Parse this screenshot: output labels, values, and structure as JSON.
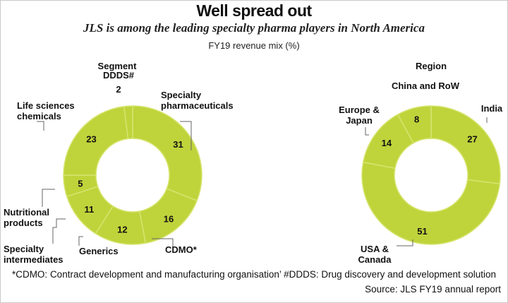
{
  "header": {
    "title": "Well spread out",
    "subtitle": "JLS is among the leading specialty pharma players in North America",
    "caption": "FY19 revenue mix (%)"
  },
  "colors": {
    "ring": "#bfd43b",
    "divider": "#d7e46f",
    "leader": "#666666"
  },
  "footer": {
    "footnote": "*CDMO: Contract development and manufacturing organisation’ #DDDS: Drug discovery and development solution",
    "source": "Source: JLS FY19 annual report"
  },
  "chart_data": [
    {
      "type": "pie",
      "title": "Segment",
      "categories": [
        "Specialty pharmaceuticals",
        "CDMO*",
        "Generics",
        "Specialty intermediates",
        "Nutritional products",
        "Life sciences chemicals",
        "DDDS#"
      ],
      "values": [
        31,
        16,
        12,
        11,
        5,
        23,
        2
      ],
      "donut": true
    },
    {
      "type": "pie",
      "title": "Region",
      "categories": [
        "India",
        "USA & Canada",
        "Europe & Japan",
        "China and RoW"
      ],
      "values": [
        27,
        51,
        14,
        8
      ],
      "donut": true
    }
  ]
}
